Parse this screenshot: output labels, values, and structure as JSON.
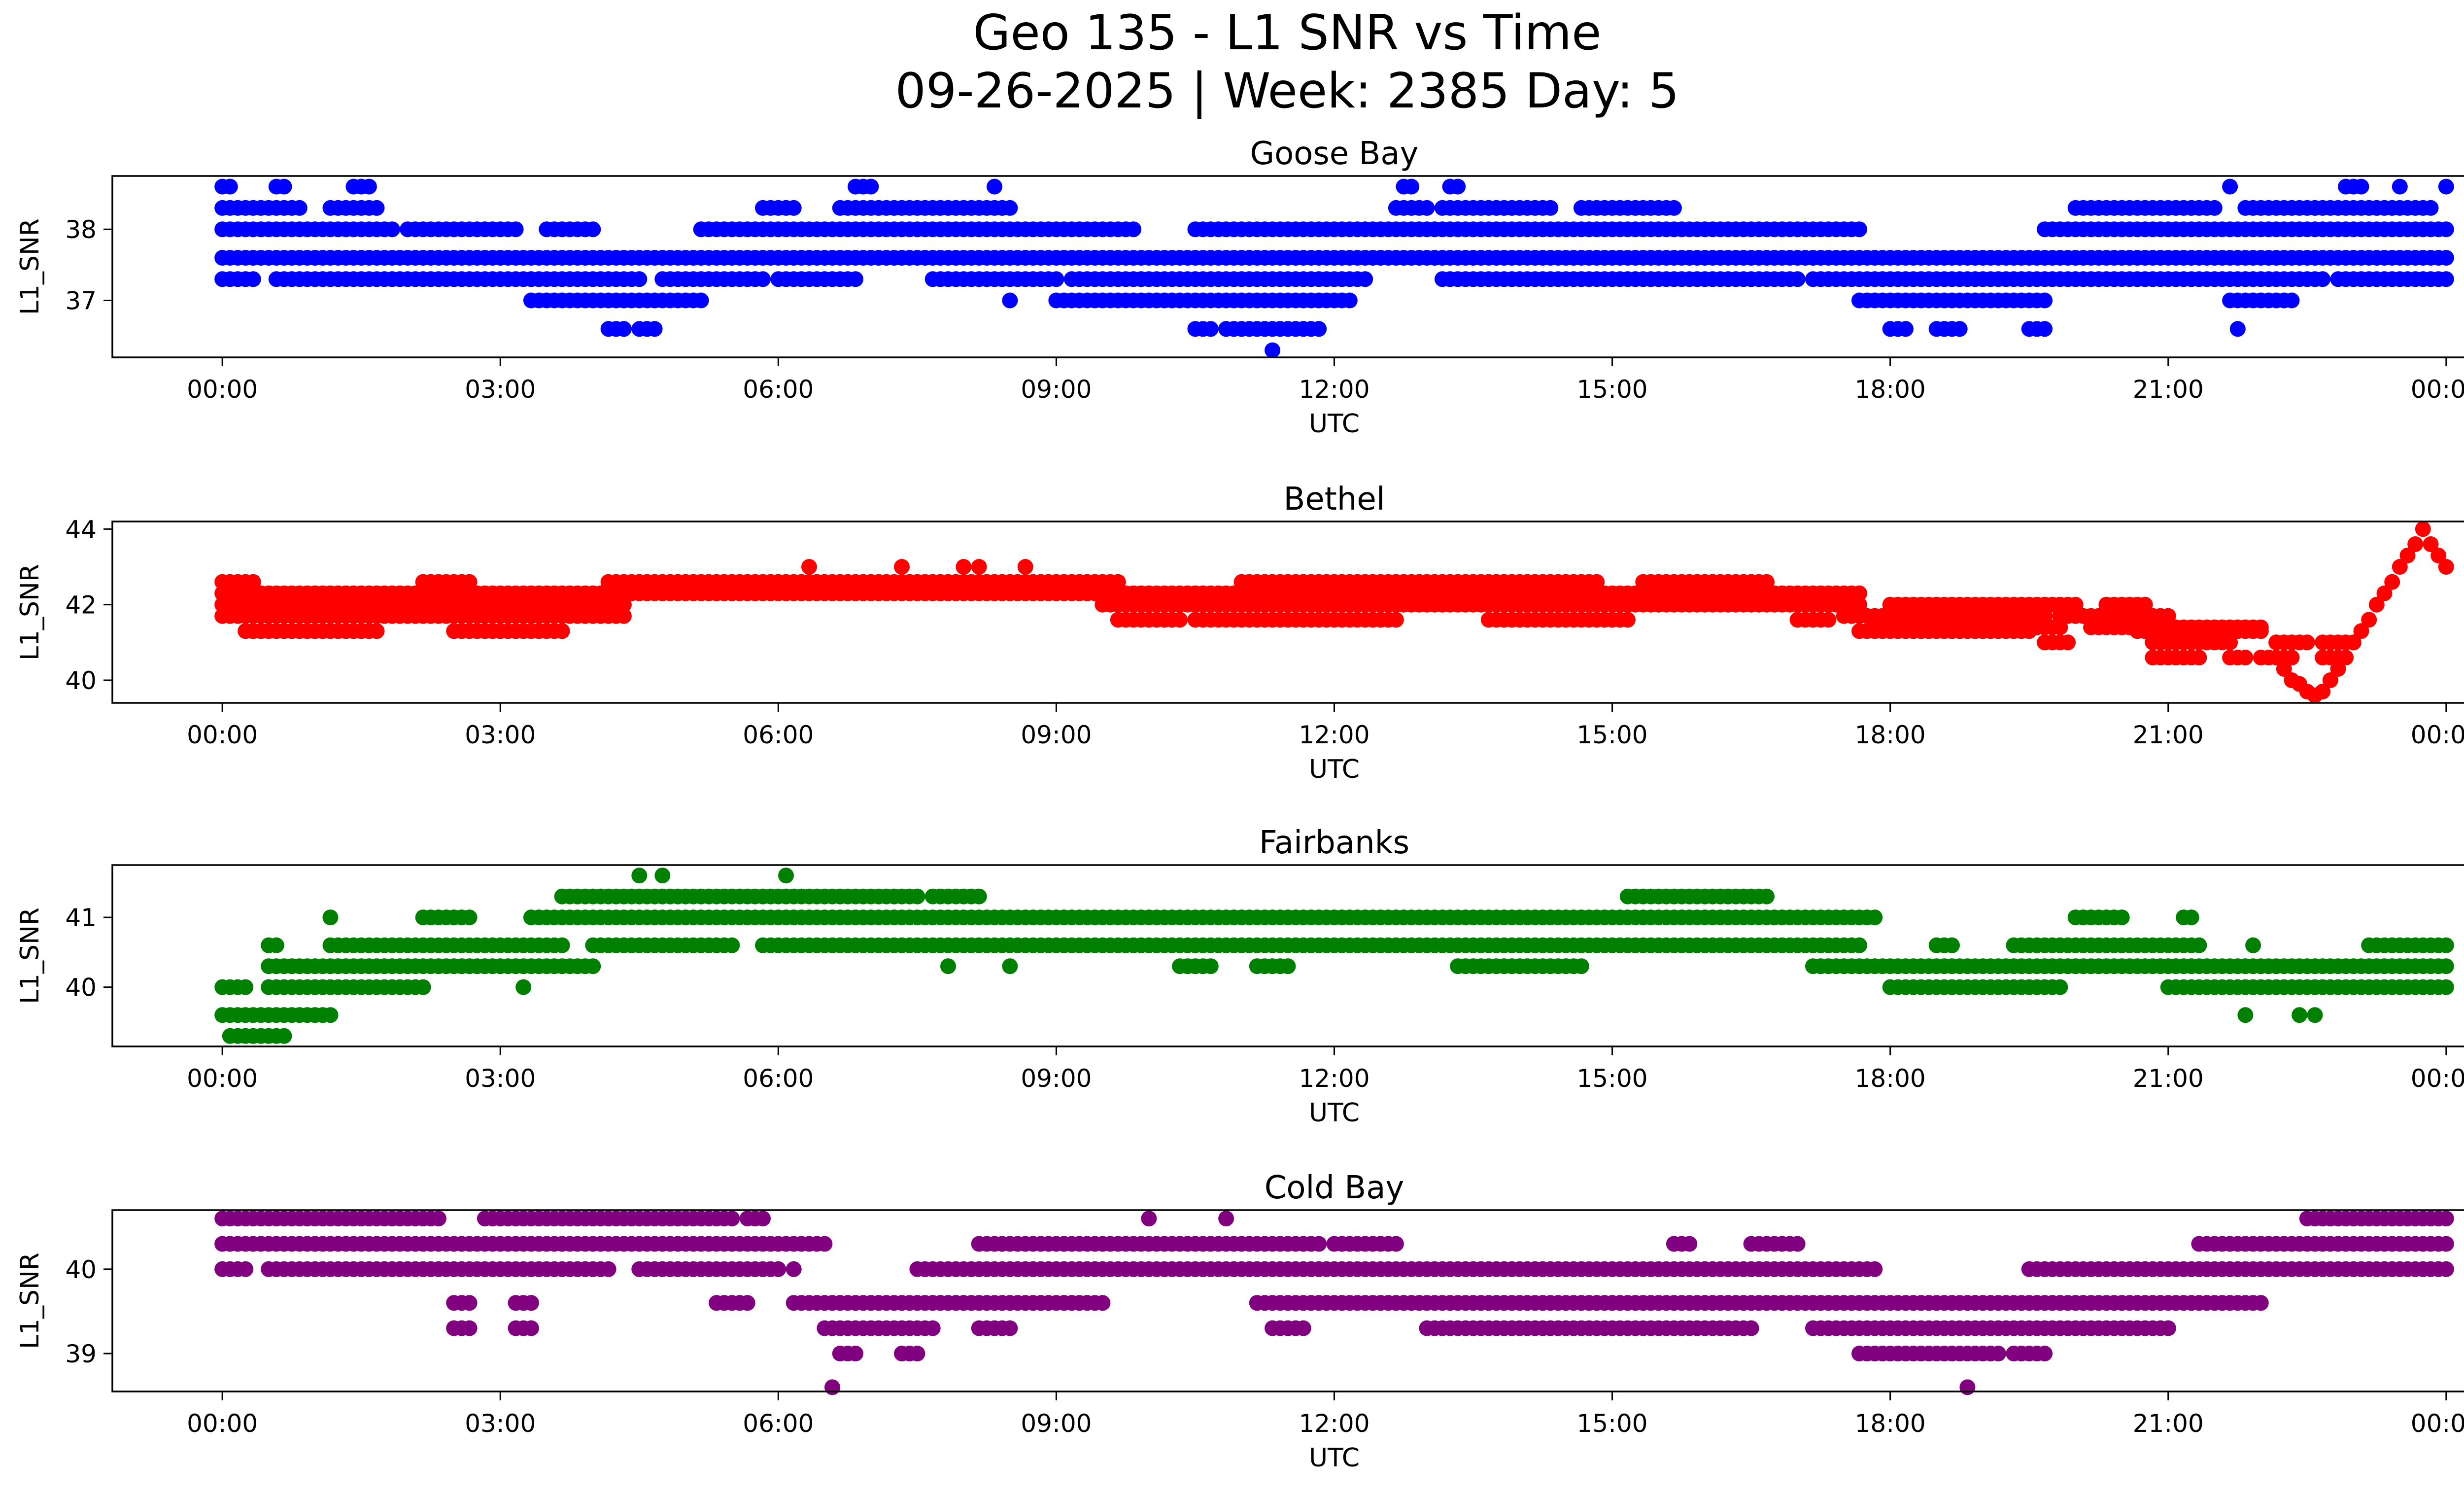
{
  "figure": {
    "title_line1": "Geo 135 - L1 SNR vs Time",
    "title_line2": "09-26-2025 | Week: 2385 Day: 5"
  },
  "chart_data": [
    {
      "type": "scatter",
      "title": "Goose Bay",
      "xlabel": "UTC",
      "ylabel": "L1_SNR",
      "color": "#0000ff",
      "xlim": [
        "00:00",
        "24:00"
      ],
      "ylim": [
        36.2,
        38.75
      ],
      "x_ticks": [
        "00:00",
        "03:00",
        "06:00",
        "09:00",
        "12:00",
        "15:00",
        "18:00",
        "21:00",
        "00:00"
      ],
      "y_ticks": [
        37,
        38
      ],
      "levels": [
        {
          "y": 37.6,
          "ranges": [
            [
              "00:00",
              "24:00"
            ]
          ]
        },
        {
          "y": 37.3,
          "ranges": [
            [
              "00:00",
              "00:20"
            ],
            [
              "00:35",
              "04:30"
            ],
            [
              "04:45",
              "05:50"
            ],
            [
              "06:00",
              "06:50"
            ],
            [
              "07:40",
              "09:00"
            ],
            [
              "09:10",
              "12:20"
            ],
            [
              "13:10",
              "17:00"
            ],
            [
              "17:10",
              "22:40"
            ],
            [
              "22:50",
              "24:00"
            ]
          ]
        },
        {
          "y": 38.0,
          "ranges": [
            [
              "00:00",
              "01:50"
            ],
            [
              "02:00",
              "03:10"
            ],
            [
              "03:30",
              "04:00"
            ],
            [
              "05:10",
              "09:50"
            ],
            [
              "10:30",
              "17:40"
            ],
            [
              "19:40",
              "24:00"
            ]
          ]
        },
        {
          "y": 38.3,
          "ranges": [
            [
              "00:00",
              "00:50"
            ],
            [
              "01:10",
              "01:40"
            ],
            [
              "05:50",
              "06:10"
            ],
            [
              "06:40",
              "07:50"
            ],
            [
              "07:55",
              "08:30"
            ],
            [
              "12:40",
              "13:00"
            ],
            [
              "13:10",
              "14:20"
            ],
            [
              "14:40",
              "15:40"
            ],
            [
              "20:00",
              "21:30"
            ],
            [
              "21:50",
              "23:50"
            ]
          ]
        },
        {
          "y": 37.0,
          "ranges": [
            [
              "03:20",
              "05:10"
            ],
            [
              "09:00",
              "12:10"
            ],
            [
              "17:40",
              "19:40"
            ],
            [
              "21:40",
              "22:20"
            ]
          ]
        },
        {
          "y": 36.6,
          "ranges": [
            [
              "04:10",
              "04:20"
            ],
            [
              "04:30",
              "04:40"
            ],
            [
              "10:30",
              "10:40"
            ],
            [
              "10:50",
              "11:50"
            ],
            [
              "18:00",
              "18:10"
            ],
            [
              "18:30",
              "18:45"
            ],
            [
              "19:30",
              "19:40"
            ]
          ]
        },
        {
          "y": 38.6,
          "ranges": [
            [
              "00:00",
              "00:05"
            ],
            [
              "00:35",
              "00:40"
            ],
            [
              "01:30",
              "01:35"
            ],
            [
              "06:50",
              "07:00"
            ],
            [
              "12:45",
              "12:50"
            ],
            [
              "13:15",
              "13:20"
            ],
            [
              "22:55",
              "23:05"
            ]
          ]
        }
      ],
      "outliers": [
        {
          "x": "11:20",
          "y": 36.3
        },
        {
          "x": "01:25",
          "y": 38.6
        },
        {
          "x": "08:20",
          "y": 38.6
        },
        {
          "x": "21:40",
          "y": 38.6
        },
        {
          "x": "23:30",
          "y": 38.6
        },
        {
          "x": "24:00",
          "y": 38.6
        },
        {
          "x": "08:30",
          "y": 37.0
        },
        {
          "x": "21:45",
          "y": 36.6
        }
      ]
    },
    {
      "type": "scatter",
      "title": "Bethel",
      "xlabel": "UTC",
      "ylabel": "L1_SNR",
      "color": "#ff0000",
      "xlim": [
        "00:00",
        "24:00"
      ],
      "ylim": [
        39.4,
        44.2
      ],
      "x_ticks": [
        "00:00",
        "03:00",
        "06:00",
        "09:00",
        "12:00",
        "15:00",
        "18:00",
        "21:00",
        "00:00"
      ],
      "y_ticks": [
        40,
        42,
        44
      ],
      "levels": [
        {
          "y": 42.0,
          "ranges": [
            [
              "00:00",
              "04:20"
            ],
            [
              "09:30",
              "17:40"
            ]
          ]
        },
        {
          "y": 41.7,
          "ranges": [
            [
              "00:00",
              "04:20"
            ],
            [
              "17:30",
              "19:40"
            ]
          ]
        },
        {
          "y": 42.3,
          "ranges": [
            [
              "00:00",
              "17:40"
            ]
          ]
        },
        {
          "y": 42.6,
          "ranges": [
            [
              "00:00",
              "00:20"
            ],
            [
              "02:10",
              "02:40"
            ],
            [
              "04:10",
              "09:40"
            ],
            [
              "11:00",
              "14:50"
            ],
            [
              "15:20",
              "16:40"
            ]
          ]
        },
        {
          "y": 41.3,
          "ranges": [
            [
              "00:15",
              "01:40"
            ],
            [
              "02:30",
              "03:40"
            ],
            [
              "17:40",
              "19:30"
            ],
            [
              "20:40",
              "22:00"
            ]
          ]
        },
        {
          "y": 41.4,
          "ranges": [
            [
              "17:50",
              "19:50"
            ],
            [
              "20:10",
              "22:00"
            ]
          ]
        },
        {
          "y": 42.0,
          "ranges": [
            [
              "18:00",
              "20:00"
            ],
            [
              "20:20",
              "20:45"
            ]
          ]
        },
        {
          "y": 41.0,
          "ranges": [
            [
              "19:40",
              "19:55"
            ],
            [
              "20:50",
              "21:40"
            ],
            [
              "22:10",
              "22:30"
            ],
            [
              "22:40",
              "23:00"
            ]
          ]
        },
        {
          "y": 41.7,
          "ranges": [
            [
              "19:50",
              "21:00"
            ]
          ]
        },
        {
          "y": 40.6,
          "ranges": [
            [
              "20:50",
              "21:20"
            ],
            [
              "21:40",
              "21:50"
            ],
            [
              "22:00",
              "22:20"
            ],
            [
              "22:40",
              "22:50"
            ]
          ]
        },
        {
          "y": 41.6,
          "ranges": [
            [
              "09:40",
              "10:20"
            ],
            [
              "10:30",
              "12:40"
            ],
            [
              "13:40",
              "15:10"
            ],
            [
              "17:00",
              "17:20"
            ]
          ]
        }
      ],
      "outliers": [
        {
          "x": "06:20",
          "y": 43.0
        },
        {
          "x": "07:20",
          "y": 43.0
        },
        {
          "x": "08:00",
          "y": 43.0
        },
        {
          "x": "08:10",
          "y": 43.0
        },
        {
          "x": "08:40",
          "y": 43.0
        }
      ],
      "trend": [
        {
          "x": "22:15",
          "y": 40.3
        },
        {
          "x": "22:20",
          "y": 40.0
        },
        {
          "x": "22:25",
          "y": 39.9
        },
        {
          "x": "22:30",
          "y": 39.7
        },
        {
          "x": "22:35",
          "y": 39.6
        },
        {
          "x": "22:40",
          "y": 39.7
        },
        {
          "x": "22:45",
          "y": 40.0
        },
        {
          "x": "22:50",
          "y": 40.3
        },
        {
          "x": "22:55",
          "y": 40.6
        },
        {
          "x": "23:00",
          "y": 41.0
        },
        {
          "x": "23:05",
          "y": 41.3
        },
        {
          "x": "23:10",
          "y": 41.6
        },
        {
          "x": "23:15",
          "y": 42.0
        },
        {
          "x": "23:20",
          "y": 42.3
        },
        {
          "x": "23:25",
          "y": 42.6
        },
        {
          "x": "23:30",
          "y": 43.0
        },
        {
          "x": "23:35",
          "y": 43.3
        },
        {
          "x": "23:40",
          "y": 43.6
        },
        {
          "x": "23:45",
          "y": 44.0
        },
        {
          "x": "23:50",
          "y": 43.6
        },
        {
          "x": "23:55",
          "y": 43.3
        },
        {
          "x": "24:00",
          "y": 43.0
        }
      ]
    },
    {
      "type": "scatter",
      "title": "Fairbanks",
      "xlabel": "UTC",
      "ylabel": "L1_SNR",
      "color": "#008000",
      "xlim": [
        "00:00",
        "24:00"
      ],
      "ylim": [
        39.15,
        41.75
      ],
      "x_ticks": [
        "00:00",
        "03:00",
        "06:00",
        "09:00",
        "12:00",
        "15:00",
        "18:00",
        "21:00",
        "00:00"
      ],
      "y_ticks": [
        40,
        41
      ],
      "levels": [
        {
          "y": 39.3,
          "ranges": [
            [
              "00:05",
              "00:40"
            ]
          ]
        },
        {
          "y": 39.6,
          "ranges": [
            [
              "00:00",
              "01:10"
            ]
          ]
        },
        {
          "y": 40.0,
          "ranges": [
            [
              "00:00",
              "00:15"
            ],
            [
              "00:30",
              "02:10"
            ],
            [
              "18:00",
              "19:50"
            ],
            [
              "21:00",
              "24:00"
            ]
          ]
        },
        {
          "y": 40.3,
          "ranges": [
            [
              "00:30",
              "04:00"
            ],
            [
              "17:10",
              "24:00"
            ]
          ]
        },
        {
          "y": 40.6,
          "ranges": [
            [
              "00:30",
              "00:35"
            ],
            [
              "01:10",
              "03:40"
            ],
            [
              "04:00",
              "05:30"
            ],
            [
              "05:50",
              "17:40"
            ],
            [
              "18:30",
              "18:40"
            ],
            [
              "19:20",
              "21:20"
            ],
            [
              "23:10",
              "24:00"
            ]
          ]
        },
        {
          "y": 41.0,
          "ranges": [
            [
              "02:10",
              "02:40"
            ],
            [
              "03:20",
              "17:50"
            ],
            [
              "20:00",
              "20:30"
            ],
            [
              "21:10",
              "21:15"
            ]
          ]
        },
        {
          "y": 41.3,
          "ranges": [
            [
              "03:40",
              "07:30"
            ],
            [
              "07:40",
              "08:10"
            ],
            [
              "15:10",
              "16:40"
            ]
          ]
        },
        {
          "y": 40.3,
          "ranges": [
            [
              "10:20",
              "10:40"
            ],
            [
              "11:10",
              "11:30"
            ],
            [
              "13:20",
              "14:40"
            ]
          ]
        }
      ],
      "outliers": [
        {
          "x": "04:30",
          "y": 41.6
        },
        {
          "x": "04:45",
          "y": 41.6
        },
        {
          "x": "06:05",
          "y": 41.6
        },
        {
          "x": "01:10",
          "y": 41.0
        },
        {
          "x": "03:15",
          "y": 40.0
        },
        {
          "x": "07:50",
          "y": 40.3
        },
        {
          "x": "08:30",
          "y": 40.3
        },
        {
          "x": "21:50",
          "y": 39.6
        },
        {
          "x": "22:25",
          "y": 39.6
        },
        {
          "x": "22:35",
          "y": 39.6
        },
        {
          "x": "21:55",
          "y": 40.6
        }
      ]
    },
    {
      "type": "scatter",
      "title": "Cold Bay",
      "xlabel": "UTC",
      "ylabel": "L1_SNR",
      "color": "#800080",
      "xlim": [
        "00:00",
        "24:00"
      ],
      "ylim": [
        38.55,
        40.7
      ],
      "x_ticks": [
        "00:00",
        "03:00",
        "06:00",
        "09:00",
        "12:00",
        "15:00",
        "18:00",
        "21:00",
        "00:00"
      ],
      "y_ticks": [
        39,
        40
      ],
      "levels": [
        {
          "y": 40.6,
          "ranges": [
            [
              "00:00",
              "02:20"
            ],
            [
              "02:50",
              "05:30"
            ],
            [
              "05:40",
              "05:50"
            ],
            [
              "22:30",
              "24:00"
            ]
          ]
        },
        {
          "y": 40.3,
          "ranges": [
            [
              "00:00",
              "06:30"
            ],
            [
              "08:10",
              "11:50"
            ],
            [
              "12:00",
              "12:40"
            ],
            [
              "15:40",
              "15:50"
            ],
            [
              "16:30",
              "17:00"
            ],
            [
              "21:20",
              "24:00"
            ]
          ]
        },
        {
          "y": 40.0,
          "ranges": [
            [
              "00:00",
              "00:15"
            ],
            [
              "00:30",
              "04:10"
            ],
            [
              "04:30",
              "06:00"
            ],
            [
              "07:30",
              "17:50"
            ],
            [
              "19:30",
              "24:00"
            ]
          ]
        },
        {
          "y": 39.6,
          "ranges": [
            [
              "02:30",
              "02:40"
            ],
            [
              "03:10",
              "03:20"
            ],
            [
              "05:20",
              "05:40"
            ],
            [
              "06:10",
              "09:30"
            ],
            [
              "11:10",
              "22:00"
            ]
          ]
        },
        {
          "y": 39.3,
          "ranges": [
            [
              "02:30",
              "02:40"
            ],
            [
              "03:10",
              "03:20"
            ],
            [
              "06:30",
              "07:40"
            ],
            [
              "08:10",
              "08:30"
            ],
            [
              "11:20",
              "11:40"
            ],
            [
              "13:00",
              "16:30"
            ],
            [
              "17:10",
              "21:00"
            ]
          ]
        },
        {
          "y": 39.0,
          "ranges": [
            [
              "06:40",
              "06:50"
            ],
            [
              "07:20",
              "07:30"
            ],
            [
              "17:40",
              "19:10"
            ],
            [
              "19:20",
              "19:40"
            ]
          ]
        }
      ],
      "outliers": [
        {
          "x": "06:35",
          "y": 38.6
        },
        {
          "x": "18:50",
          "y": 38.6
        },
        {
          "x": "10:00",
          "y": 40.6
        },
        {
          "x": "10:50",
          "y": 40.6
        },
        {
          "x": "06:10",
          "y": 40.0
        }
      ]
    }
  ]
}
